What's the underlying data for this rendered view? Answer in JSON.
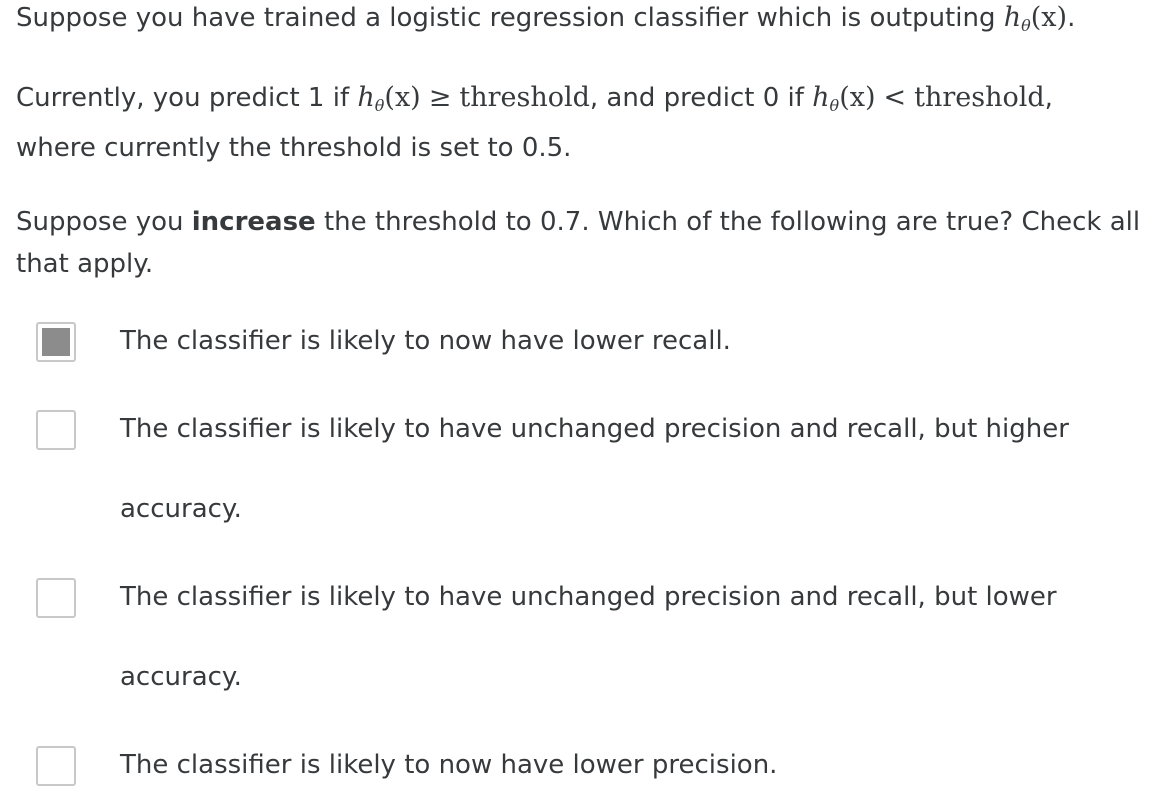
{
  "question": {
    "p1_text": "Suppose you have trained a logistic regression classifier which is outputing ",
    "p1_math_h": "h",
    "p1_math_sub": "θ",
    "p1_math_arg": "(x)",
    "p1_end": ".",
    "p2_a": "Currently, you predict 1 if ",
    "p2_h1": "h",
    "p2_sub1": "θ",
    "p2_arg1": "(x)",
    "p2_ge": "≥",
    "p2_thr1": "threshold",
    "p2_b": ", and predict 0 if ",
    "p2_h2": "h",
    "p2_sub2": "θ",
    "p2_arg2": "(x)",
    "p2_lt": "<",
    "p2_thr2": "threshold",
    "p2_c": ",",
    "p2_d": "where currently the threshold is set to 0.5.",
    "p3_a": "Suppose you ",
    "p3_bold": "increase",
    "p3_b": " the threshold to 0.7. Which of the following are true? Check all that apply."
  },
  "options": [
    {
      "label": "The classifier is likely to now have lower recall.",
      "checked": true
    },
    {
      "label": "The classifier is likely to have unchanged precision and recall, but higher accuracy.",
      "checked": false
    },
    {
      "label": "The classifier is likely to have unchanged precision and recall, but lower accuracy.",
      "checked": false
    },
    {
      "label": "The classifier is likely to now have lower precision.",
      "checked": false
    }
  ]
}
